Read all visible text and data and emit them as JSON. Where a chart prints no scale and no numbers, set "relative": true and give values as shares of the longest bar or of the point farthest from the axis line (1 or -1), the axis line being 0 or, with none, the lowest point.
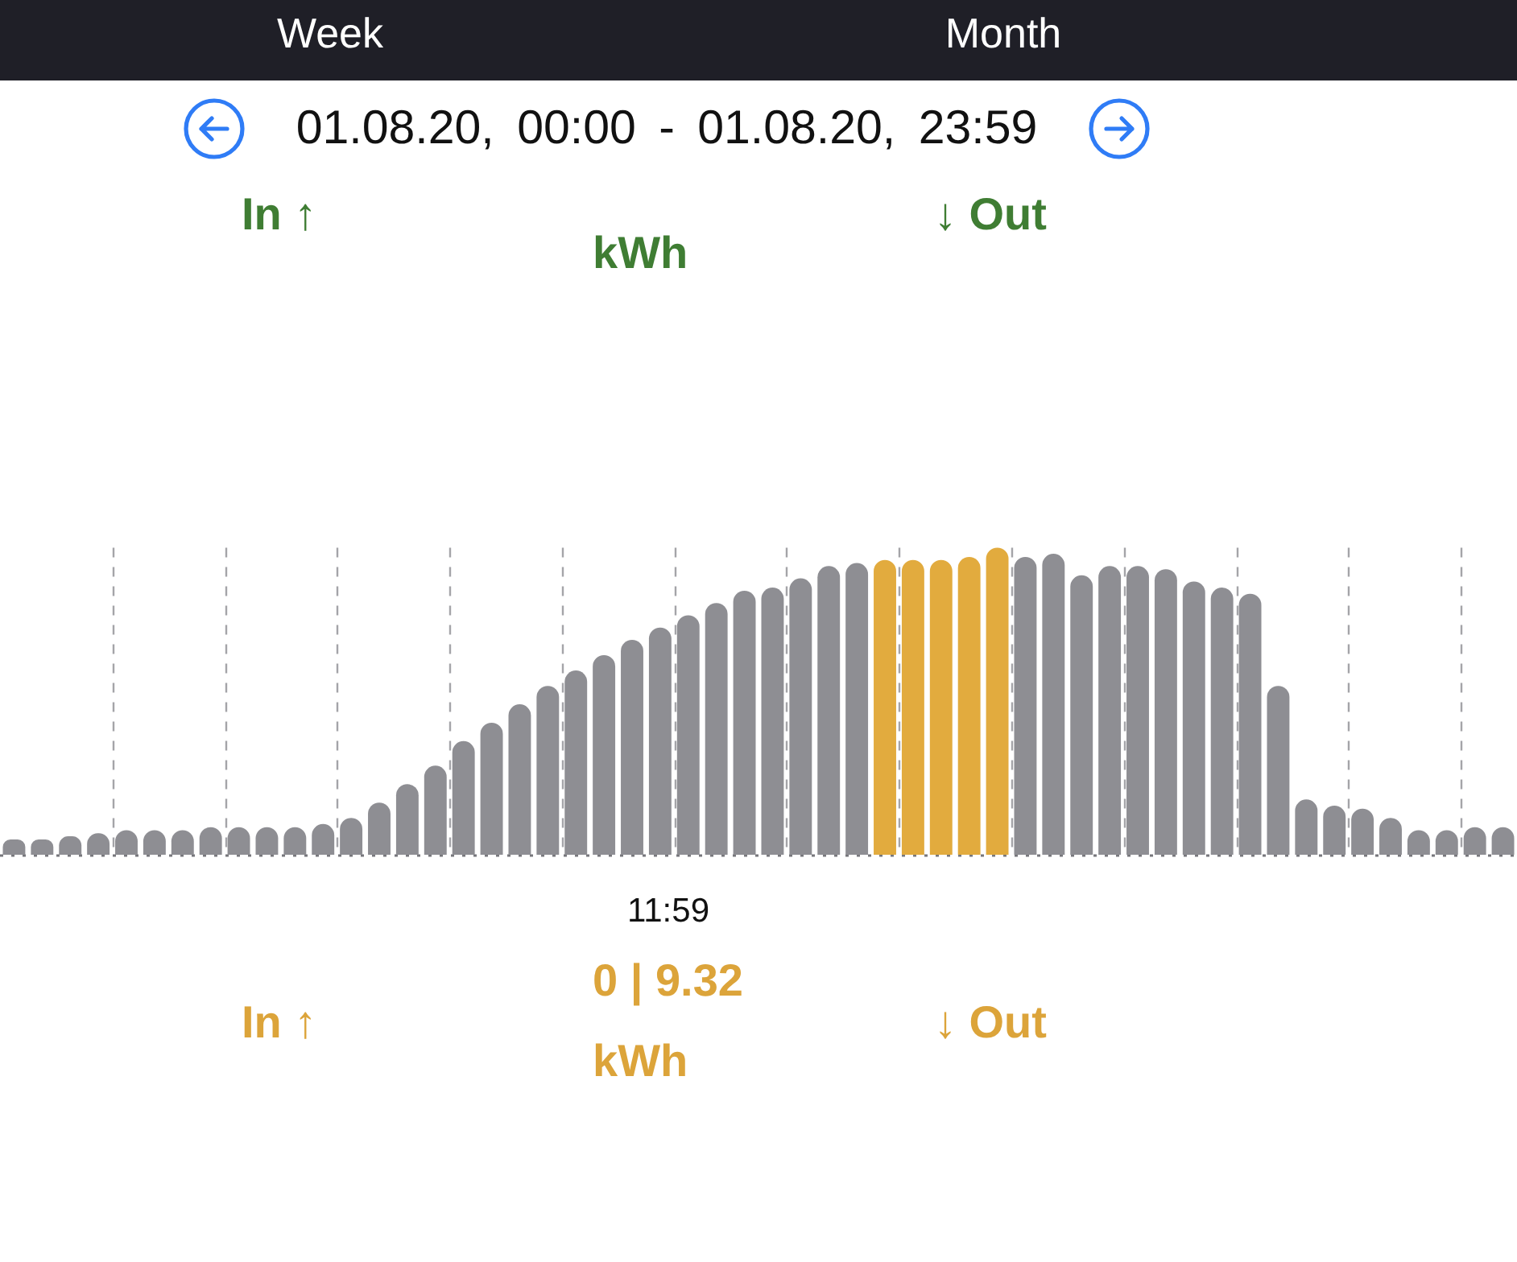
{
  "chart_data": {
    "type": "bar",
    "relative": true,
    "title": "01.08.20, 00:00 - 01.08.20, 23:59",
    "annotations": [
      "Week",
      "Month",
      "In ↑",
      "kWh",
      "↓ Out",
      "11:59",
      "In ↑",
      "0 | 9.32",
      "kWh",
      "↓ Out"
    ],
    "categories": [
      null,
      null,
      null,
      null,
      null,
      null,
      null,
      null,
      null,
      null,
      null,
      null,
      null,
      null,
      null,
      null,
      null,
      null,
      null,
      null,
      null,
      null,
      null,
      null,
      null,
      null,
      null,
      null,
      null,
      null,
      null,
      null,
      null,
      null,
      null,
      null,
      null,
      null,
      null,
      null,
      null,
      null,
      null,
      null,
      null,
      null,
      null,
      null,
      null,
      null,
      null,
      null,
      null,
      null
    ],
    "values": [
      0.05,
      0.05,
      0.06,
      0.07,
      0.08,
      0.08,
      0.08,
      0.09,
      0.09,
      0.09,
      0.09,
      0.1,
      0.12,
      0.17,
      0.23,
      0.29,
      0.37,
      0.43,
      0.49,
      0.55,
      0.6,
      0.65,
      0.7,
      0.74,
      0.78,
      0.82,
      0.86,
      0.87,
      0.9,
      0.94,
      0.95,
      0.96,
      0.96,
      0.96,
      0.97,
      1,
      0.97,
      0.98,
      0.91,
      0.94,
      0.94,
      0.93,
      0.89,
      0.87,
      0.85,
      0.55,
      0.18,
      0.16,
      0.15,
      0.12,
      0.08,
      0.08,
      0.09,
      0.09
    ],
    "colors": [
      "#8e8e93",
      "#8e8e93",
      "#8e8e93",
      "#8e8e93",
      "#8e8e93",
      "#8e8e93",
      "#8e8e93",
      "#8e8e93",
      "#8e8e93",
      "#8e8e93",
      "#8e8e93",
      "#8e8e93",
      "#8e8e93",
      "#8e8e93",
      "#8e8e93",
      "#8e8e93",
      "#8e8e93",
      "#8e8e93",
      "#8e8e93",
      "#8e8e93",
      "#8e8e93",
      "#8e8e93",
      "#8e8e93",
      "#8e8e93",
      "#8e8e93",
      "#8e8e93",
      "#8e8e93",
      "#8e8e93",
      "#8e8e93",
      "#8e8e93",
      "#8e8e93",
      "#e2ab3e",
      "#e2ab3e",
      "#e2ab3e",
      "#e2ab3e",
      "#e2ab3e",
      "#8e8e93",
      "#8e8e93",
      "#8e8e93",
      "#8e8e93",
      "#8e8e93",
      "#8e8e93",
      "#8e8e93",
      "#8e8e93",
      "#8e8e93",
      "#8e8e93",
      "#8e8e93",
      "#8e8e93",
      "#8e8e93",
      "#8e8e93",
      "#8e8e93",
      "#8e8e93",
      "#8e8e93",
      "#8e8e93"
    ],
    "grid": "x"
  }
}
